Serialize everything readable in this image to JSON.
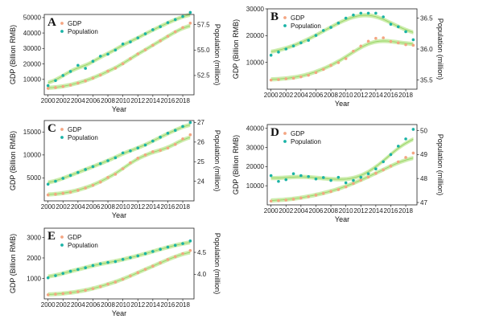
{
  "colors": {
    "gdp": "#f4a582",
    "population": "#1ab3a6",
    "band": "#b8e68c",
    "axis": "#222222"
  },
  "chart_data": [
    {
      "type": "scatter",
      "panel": "A",
      "legend": [
        "GDP",
        "Population"
      ],
      "legend_position": "top-left",
      "xlabel": "Year",
      "ylabel": "GDP (Billion RMB)",
      "y2label": "Population (million)",
      "xlim": [
        1999.5,
        2019.5
      ],
      "ylim": [
        0,
        52000
      ],
      "y2lim": [
        50.6,
        58.5
      ],
      "xticks": [
        2000,
        2002,
        2004,
        2006,
        2008,
        2010,
        2012,
        2014,
        2016,
        2018
      ],
      "xtick_labels": [
        "2000",
        "2002",
        "2004",
        "2006",
        "2008",
        "2010",
        "2012",
        "2014",
        "2016",
        "2018"
      ],
      "yticks": [
        10000,
        20000,
        30000,
        40000,
        50000
      ],
      "ytick_labels": [
        "10000",
        "20000",
        "30000",
        "40000",
        "50000"
      ],
      "y2ticks": [
        52.5,
        55.0,
        57.5
      ],
      "y2tick_labels": [
        "52.5",
        "55.0",
        "57.5"
      ],
      "years": [
        2000,
        2001,
        2002,
        2003,
        2004,
        2005,
        2006,
        2007,
        2008,
        2009,
        2010,
        2011,
        2012,
        2013,
        2014,
        2015,
        2016,
        2017,
        2018,
        2019
      ],
      "gdp": [
        4200,
        4700,
        5400,
        6300,
        7600,
        9000,
        10800,
        12800,
        15300,
        17200,
        20100,
        23400,
        26500,
        29100,
        32100,
        35000,
        37900,
        40800,
        43500,
        46400
      ],
      "population": [
        51.5,
        52.0,
        52.5,
        52.9,
        53.5,
        53.2,
        53.9,
        54.4,
        54.6,
        55.0,
        55.6,
        55.8,
        56.2,
        56.6,
        57.0,
        57.3,
        57.7,
        58.0,
        58.3,
        58.7
      ]
    },
    {
      "type": "scatter",
      "panel": "B",
      "legend": [
        "GDP",
        "Population"
      ],
      "legend_position": "top-left",
      "xlabel": "Year",
      "ylabel": "GDP (Billion RMB)",
      "y2label": "Population (million)",
      "xlim": [
        1999.5,
        2019.5
      ],
      "ylim": [
        0,
        30000
      ],
      "y2lim": [
        35.35,
        36.65
      ],
      "xticks": [
        2000,
        2002,
        2004,
        2006,
        2008,
        2010,
        2012,
        2014,
        2016,
        2018
      ],
      "xtick_labels": [
        "2000",
        "2002",
        "2004",
        "2006",
        "2008",
        "2010",
        "2012",
        "2014",
        "2016",
        "2018"
      ],
      "yticks": [
        10000,
        20000,
        30000
      ],
      "ytick_labels": [
        "10000",
        "20000",
        "30000"
      ],
      "y2ticks": [
        35.5,
        36.0,
        36.5
      ],
      "y2tick_labels": [
        "35.5",
        "36.0",
        "36.5"
      ],
      "years": [
        2000,
        2001,
        2002,
        2003,
        2004,
        2005,
        2006,
        2007,
        2008,
        2009,
        2010,
        2011,
        2012,
        2013,
        2014,
        2015,
        2016,
        2017,
        2018,
        2019
      ],
      "gdp": [
        3400,
        3600,
        3900,
        4100,
        4600,
        5200,
        6200,
        7400,
        8900,
        9900,
        11400,
        14200,
        16100,
        17900,
        19000,
        19200,
        17800,
        17300,
        16600,
        16400
      ],
      "population": [
        35.9,
        35.95,
        36.0,
        36.05,
        36.1,
        36.14,
        36.22,
        36.3,
        36.35,
        36.42,
        36.5,
        36.55,
        36.58,
        36.58,
        36.58,
        36.52,
        36.4,
        36.36,
        36.28,
        36.15
      ]
    },
    {
      "type": "scatter",
      "panel": "C",
      "legend": [
        "GDP",
        "Population"
      ],
      "legend_position": "top-left",
      "xlabel": "Year",
      "ylabel": "GDP (Billion RMB)",
      "y2label": "Population (million)",
      "xlim": [
        1999.5,
        2019.5
      ],
      "ylim": [
        0,
        17500
      ],
      "y2lim": [
        23.0,
        27.1
      ],
      "xticks": [
        2000,
        2002,
        2004,
        2006,
        2008,
        2010,
        2012,
        2014,
        2016,
        2018
      ],
      "xtick_labels": [
        "2000",
        "2002",
        "2004",
        "2006",
        "2008",
        "2010",
        "2012",
        "2014",
        "2016",
        "2018"
      ],
      "yticks": [
        5000,
        10000,
        15000
      ],
      "ytick_labels": [
        "5000",
        "10000",
        "15000"
      ],
      "y2ticks": [
        24,
        25,
        26,
        27
      ],
      "y2tick_labels": [
        "24",
        "25",
        "26",
        "27"
      ],
      "years": [
        2000,
        2001,
        2002,
        2003,
        2004,
        2005,
        2006,
        2007,
        2008,
        2009,
        2010,
        2011,
        2012,
        2013,
        2014,
        2015,
        2016,
        2017,
        2018,
        2019
      ],
      "gdp": [
        1300,
        1450,
        1650,
        1900,
        2300,
        2800,
        3400,
        4100,
        5100,
        5800,
        7000,
        8300,
        9300,
        10000,
        10700,
        11000,
        11500,
        12300,
        13500,
        14400
      ],
      "population": [
        23.85,
        24.0,
        24.15,
        24.3,
        24.45,
        24.6,
        24.75,
        24.9,
        25.05,
        25.2,
        25.45,
        25.55,
        25.7,
        25.85,
        26.05,
        26.25,
        26.45,
        26.6,
        26.8,
        27.0
      ]
    },
    {
      "type": "scatter",
      "panel": "D",
      "legend": [
        "GDP",
        "Population"
      ],
      "legend_position": "top-left",
      "xlabel": "Year",
      "ylabel": "GDP (Billion RMB)",
      "y2label": "Population (million)",
      "xlim": [
        1999.5,
        2019.5
      ],
      "ylim": [
        0,
        42000
      ],
      "y2lim": [
        46.9,
        50.25
      ],
      "xticks": [
        2000,
        2002,
        2004,
        2006,
        2008,
        2010,
        2012,
        2014,
        2016,
        2018
      ],
      "xtick_labels": [
        "2000",
        "2002",
        "2004",
        "2006",
        "2008",
        "2010",
        "2012",
        "2014",
        "2016",
        "2018"
      ],
      "yticks": [
        10000,
        20000,
        30000,
        40000
      ],
      "ytick_labels": [
        "10000",
        "20000",
        "30000",
        "40000"
      ],
      "y2ticks": [
        47,
        48,
        49,
        50
      ],
      "y2tick_labels": [
        "47",
        "48",
        "49",
        "50"
      ],
      "years": [
        2000,
        2001,
        2002,
        2003,
        2004,
        2005,
        2006,
        2007,
        2008,
        2009,
        2010,
        2011,
        2012,
        2013,
        2014,
        2015,
        2016,
        2017,
        2018,
        2019
      ],
      "gdp": [
        2000,
        2200,
        2500,
        3000,
        3600,
        4300,
        5100,
        6000,
        7000,
        8000,
        9400,
        11200,
        12900,
        14600,
        16500,
        18300,
        20300,
        22500,
        24800,
        27100
      ],
      "population": [
        48.12,
        47.88,
        47.95,
        48.2,
        48.12,
        48.08,
        47.98,
        48.04,
        47.92,
        48.05,
        47.82,
        47.92,
        48.05,
        48.2,
        48.4,
        48.7,
        49.0,
        49.35,
        49.65,
        50.05
      ]
    },
    {
      "type": "scatter",
      "panel": "E",
      "legend": [
        "GDP",
        "Population"
      ],
      "legend_position": "top-left",
      "xlabel": "Year",
      "ylabel": "GDP (Billion RMB)",
      "y2label": "Population (million)",
      "xlim": [
        1999.5,
        2019.5
      ],
      "ylim": [
        0,
        3450
      ],
      "y2lim": [
        3.44,
        5.05
      ],
      "xticks": [
        2000,
        2002,
        2004,
        2006,
        2008,
        2010,
        2012,
        2014,
        2016,
        2018
      ],
      "xtick_labels": [
        "2000",
        "2002",
        "2004",
        "2006",
        "2008",
        "2010",
        "2012",
        "2014",
        "2016",
        "2018"
      ],
      "yticks": [
        1000,
        2000,
        3000
      ],
      "ytick_labels": [
        "1000",
        "2000",
        "3000"
      ],
      "y2ticks": [
        4.0,
        4.5
      ],
      "y2tick_labels": [
        "4.0",
        "4.5"
      ],
      "years": [
        2000,
        2001,
        2002,
        2003,
        2004,
        2005,
        2006,
        2007,
        2008,
        2009,
        2010,
        2011,
        2012,
        2013,
        2014,
        2015,
        2016,
        2017,
        2018,
        2019
      ],
      "gdp": [
        200,
        230,
        260,
        300,
        350,
        420,
        500,
        600,
        720,
        820,
        960,
        1120,
        1280,
        1440,
        1600,
        1760,
        1920,
        2060,
        2210,
        2360
      ],
      "population": [
        3.92,
        3.97,
        4.02,
        4.07,
        4.11,
        4.15,
        4.2,
        4.24,
        4.27,
        4.29,
        4.34,
        4.38,
        4.42,
        4.47,
        4.52,
        4.57,
        4.62,
        4.66,
        4.7,
        4.76
      ]
    }
  ]
}
